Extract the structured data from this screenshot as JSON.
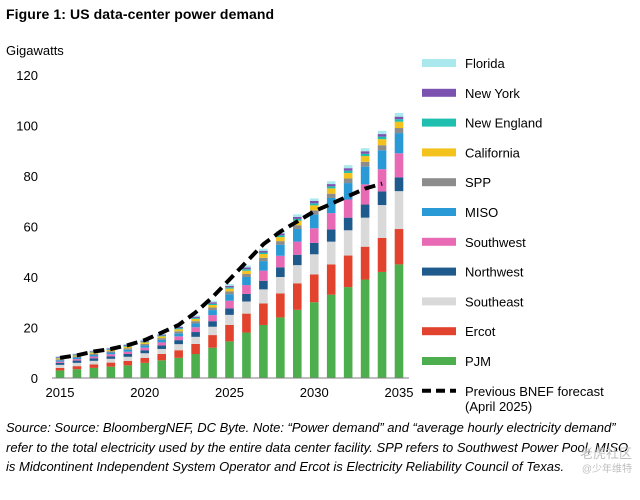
{
  "chart_data": {
    "type": "bar",
    "stacked": true,
    "title": "Figure 1:  US data-center power demand",
    "ylabel": "Gigawatts",
    "xlabel": "",
    "ylim": [
      0,
      120
    ],
    "yticks": [
      0,
      20,
      40,
      60,
      80,
      100,
      120
    ],
    "x_tick_labels": [
      "2015",
      "2020",
      "2025",
      "2030",
      "2035"
    ],
    "legend_position": "right",
    "grid": false,
    "categories": [
      "2015",
      "2016",
      "2017",
      "2018",
      "2019",
      "2020",
      "2021",
      "2022",
      "2023",
      "2024",
      "2025",
      "2026",
      "2027",
      "2028",
      "2029",
      "2030",
      "2031",
      "2032",
      "2033",
      "2034",
      "2035"
    ],
    "series": [
      {
        "name": "PJM",
        "color": "#4cae4c",
        "values": [
          3,
          3.5,
          4,
          4.5,
          5,
          6,
          7,
          8,
          9.5,
          12,
          14.5,
          18,
          21,
          24,
          27,
          30,
          33,
          36,
          39,
          42,
          45
        ]
      },
      {
        "name": "Ercot",
        "color": "#e2432e",
        "values": [
          1,
          1.2,
          1.4,
          1.6,
          1.8,
          2,
          2.5,
          3,
          4,
          5,
          6.5,
          7.5,
          8.5,
          9.5,
          10.5,
          11,
          12,
          12.5,
          13,
          13.5,
          14
        ]
      },
      {
        "name": "Southeast",
        "color": "#d9d9d9",
        "values": [
          1.2,
          1.3,
          1.4,
          1.5,
          1.6,
          1.8,
          2,
          2.4,
          2.8,
          3.3,
          4,
          4.8,
          5.6,
          6.5,
          7.2,
          8,
          9,
          10,
          11.5,
          13,
          15
        ]
      },
      {
        "name": "Northwest",
        "color": "#1f5a8c",
        "values": [
          0.8,
          0.9,
          1,
          1,
          1.1,
          1.2,
          1.4,
          1.6,
          1.9,
          2.2,
          2.6,
          3,
          3.4,
          3.8,
          4.1,
          4.5,
          4.8,
          5,
          5.2,
          5.4,
          5.5
        ]
      },
      {
        "name": "Southwest",
        "color": "#e86ab4",
        "values": [
          0.5,
          0.6,
          0.7,
          0.8,
          0.9,
          1,
          1.2,
          1.5,
          1.9,
          2.4,
          3,
          3.5,
          4,
          4.6,
          5.2,
          5.8,
          6.5,
          7.2,
          8,
          8.8,
          9.5
        ]
      },
      {
        "name": "MISO",
        "color": "#2a9ad6",
        "values": [
          0.5,
          0.6,
          0.6,
          0.7,
          0.8,
          0.9,
          1,
          1.2,
          1.5,
          2,
          2.6,
          3.2,
          3.8,
          4.4,
          5,
          5.5,
          6,
          6.5,
          7,
          7.5,
          8
        ]
      },
      {
        "name": "SPP",
        "color": "#8c8c8c",
        "values": [
          0.4,
          0.4,
          0.5,
          0.5,
          0.6,
          0.6,
          0.7,
          0.8,
          0.9,
          1,
          1.1,
          1.2,
          1.3,
          1.4,
          1.5,
          1.6,
          1.7,
          1.8,
          1.9,
          2,
          2
        ]
      },
      {
        "name": "California",
        "color": "#f3c21d",
        "values": [
          0.4,
          0.4,
          0.5,
          0.5,
          0.6,
          0.6,
          0.7,
          0.8,
          0.9,
          1,
          1.1,
          1.3,
          1.5,
          1.6,
          1.8,
          2,
          2.1,
          2.2,
          2.3,
          2.4,
          2.5
        ]
      },
      {
        "name": "New England",
        "color": "#1fbfb0",
        "values": [
          0.2,
          0.2,
          0.2,
          0.3,
          0.3,
          0.3,
          0.3,
          0.4,
          0.4,
          0.5,
          0.5,
          0.6,
          0.6,
          0.7,
          0.7,
          0.8,
          0.8,
          0.9,
          0.9,
          1,
          1
        ]
      },
      {
        "name": "New York",
        "color": "#7b52b0",
        "values": [
          0.3,
          0.3,
          0.3,
          0.3,
          0.4,
          0.4,
          0.4,
          0.5,
          0.5,
          0.6,
          0.6,
          0.7,
          0.7,
          0.8,
          0.8,
          0.9,
          0.9,
          1,
          1,
          1,
          1
        ]
      },
      {
        "name": "Florida",
        "color": "#a9e8ec",
        "values": [
          0.3,
          0.3,
          0.3,
          0.3,
          0.4,
          0.4,
          0.4,
          0.5,
          0.5,
          0.6,
          0.7,
          0.8,
          0.8,
          0.9,
          1,
          1,
          1.1,
          1.2,
          1.2,
          1.3,
          1.5
        ]
      }
    ],
    "forecast_line": {
      "name": "Previous BNEF forecast (April 2025)",
      "color": "#000000",
      "x": [
        "2015",
        "2016",
        "2017",
        "2018",
        "2019",
        "2020",
        "2021",
        "2022",
        "2023",
        "2024",
        "2025",
        "2026",
        "2027",
        "2028",
        "2029",
        "2030",
        "2031",
        "2032",
        "2033",
        "2034"
      ],
      "values": [
        8,
        9,
        10.5,
        11.5,
        13,
        15,
        18,
        21,
        26,
        32,
        39,
        46,
        53,
        58,
        62,
        66,
        69,
        72,
        75,
        77
      ]
    }
  },
  "source_text": "Source: Source: BloombergNEF, DC Byte. Note: “Power demand” and “average hourly electricity demand” refer to the total electricity used by the entire data center facility. SPP refers to Southwest Power Pool, MISO is Midcontinent Independent System Operator and Ercot is Electricity Reliability Council of Texas.",
  "watermark": {
    "main": "老虎社区",
    "sub": "@少年维特"
  }
}
